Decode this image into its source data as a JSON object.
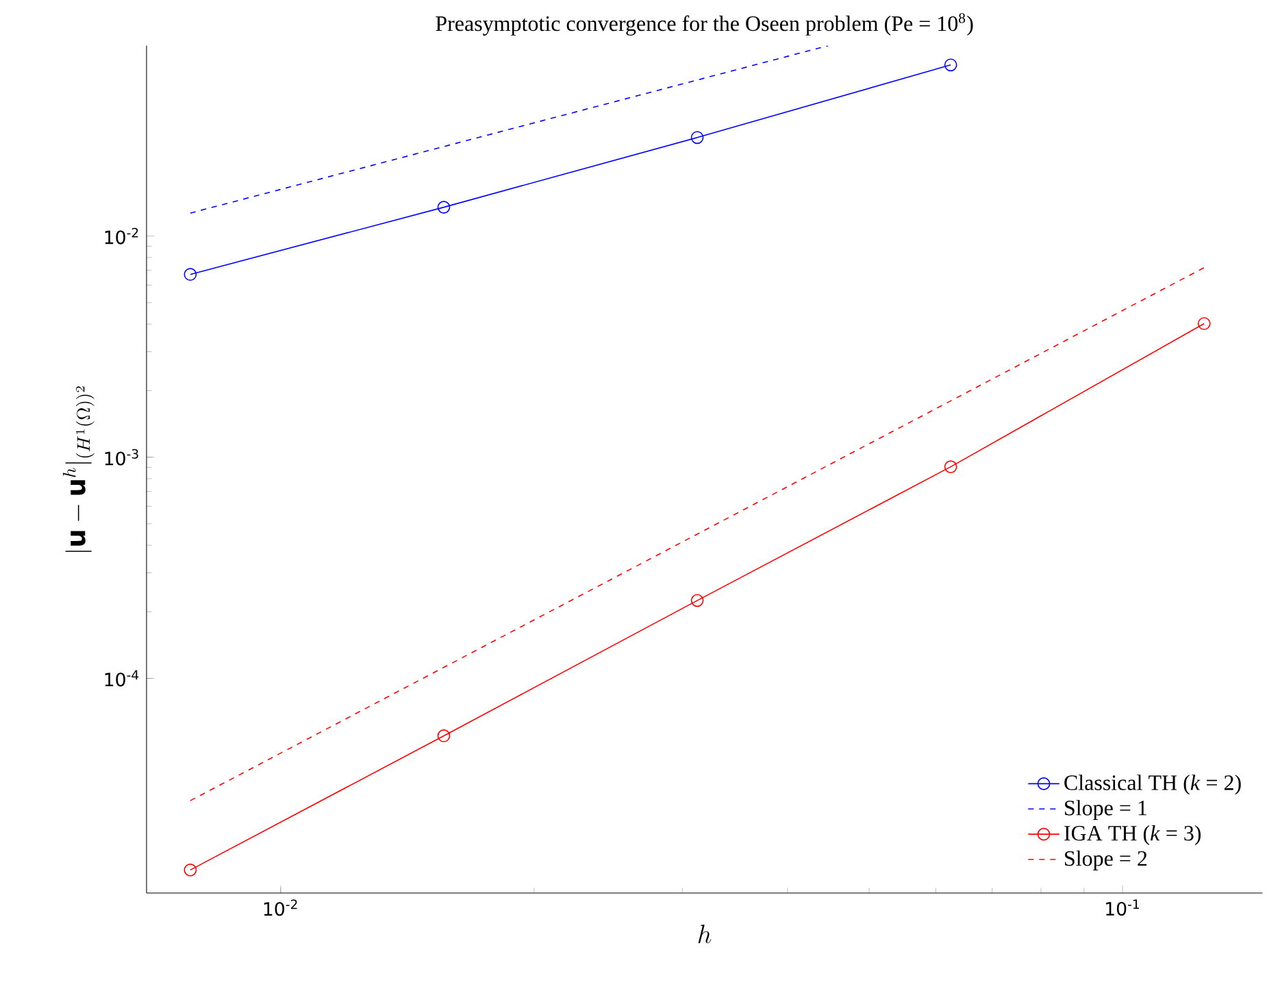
{
  "chart_data": {
    "type": "line",
    "title": "Preasymptotic convergence for the Oseen problem (Pe = 10$^{8}$)",
    "xlabel": "h",
    "ylabel": "|\\mathbf{u}-\\mathbf{u}^h|_{(H^1(\\Omega))^2}",
    "log": "xy",
    "xlim": [
      0.00693,
      0.1466
    ],
    "ylim": [
      1.07e-05,
      0.0726
    ],
    "xticks": [
      {
        "value": 0.01,
        "label": "10$^{-2}$"
      },
      {
        "value": 0.1,
        "label": "10$^{-1}$"
      }
    ],
    "yticks": [
      {
        "value": 0.0001,
        "label": "10$^{-4}$"
      },
      {
        "value": 0.001,
        "label": "10$^{-3}$"
      },
      {
        "value": 0.01,
        "label": "10$^{-2}$"
      }
    ],
    "legend": "bottom right",
    "series": [
      {
        "name": "Classical TH (*k* = 2)",
        "color": "#0000ff",
        "marker": "circle",
        "line_style": "solid",
        "x": [
          0.0078125,
          0.015625,
          0.03125,
          0.0625
        ],
        "values": [
          0.00671,
          0.0135,
          0.0279,
          0.0594
        ]
      },
      {
        "name": "Slope = 1",
        "color": "#0000ff",
        "marker": "none",
        "line_style": "dashed",
        "x": [
          0.0078125,
          0.0447
        ],
        "values": [
          0.0127,
          0.0726
        ]
      },
      {
        "name": "IGA TH (*k* = 3)",
        "color": "#ff0000",
        "marker": "circle",
        "line_style": "solid",
        "x": [
          0.0078125,
          0.015625,
          0.03125,
          0.0625,
          0.125
        ],
        "values": [
          1.36e-05,
          5.5e-05,
          0.000225,
          0.000905,
          0.00402
        ]
      },
      {
        "name": "Slope = 2",
        "color": "#ff0000",
        "marker": "none",
        "line_style": "dashed",
        "x": [
          0.0078125,
          0.125
        ],
        "values": [
          2.8e-05,
          0.0072
        ]
      }
    ]
  }
}
